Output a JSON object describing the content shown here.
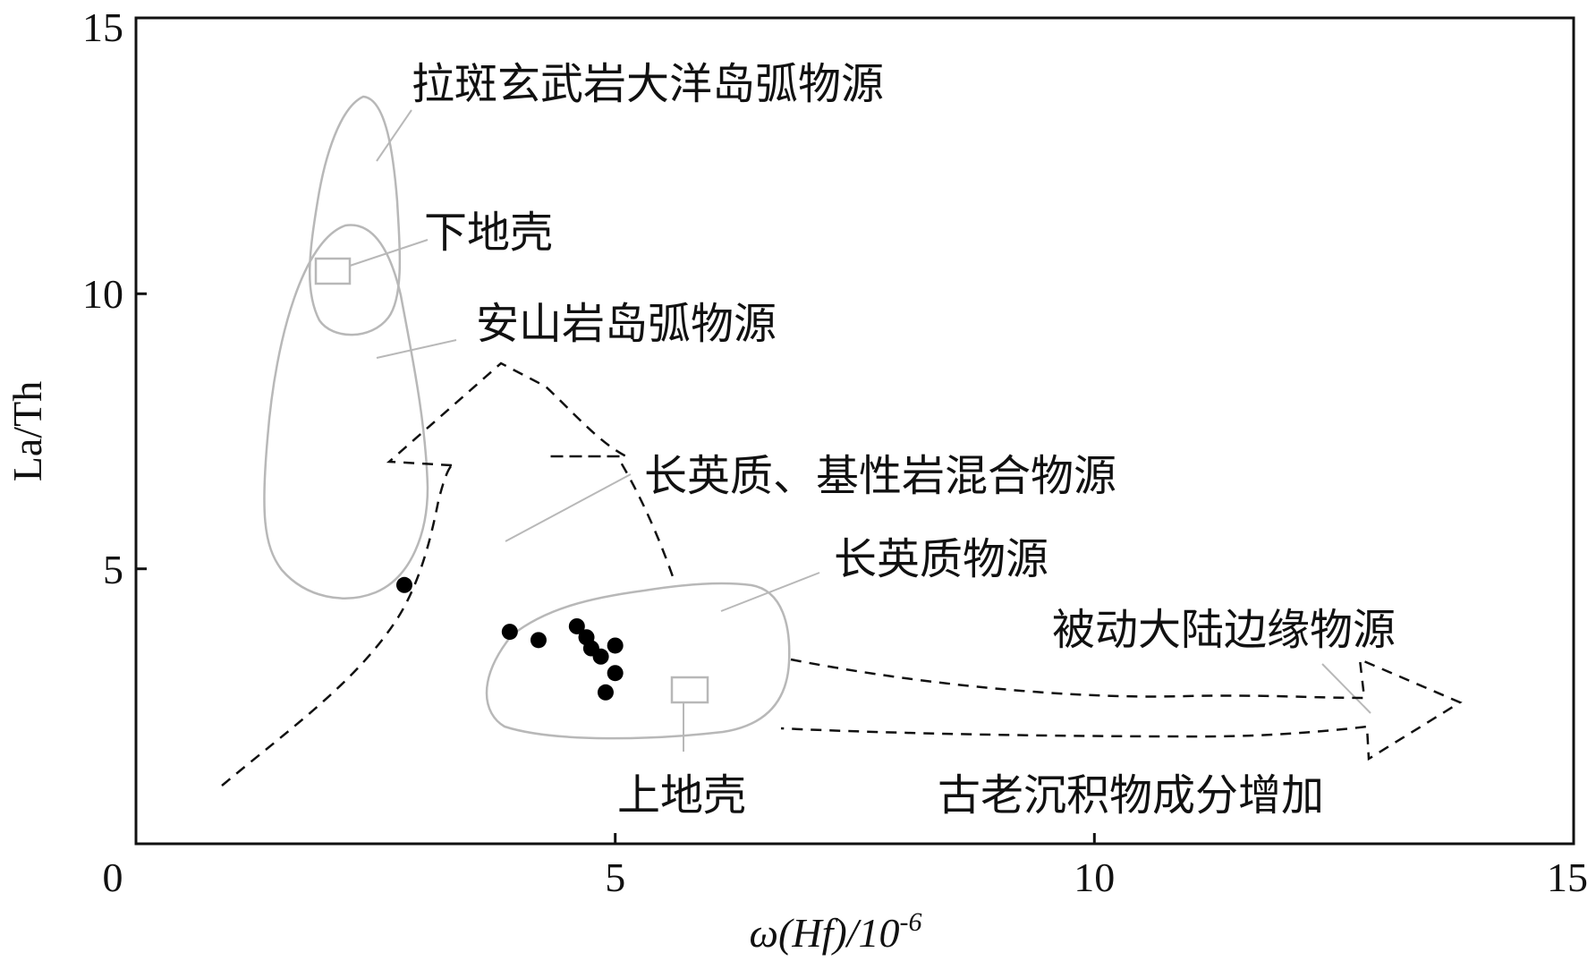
{
  "chart_data": {
    "type": "scatter",
    "title": "",
    "xlabel": "ω(Hf)/10",
    "xlabel_superscript": "-6",
    "ylabel": "La/Th",
    "xlim": [
      0,
      15
    ],
    "ylim": [
      0,
      15
    ],
    "x_ticks": [
      0,
      5,
      10,
      15
    ],
    "y_ticks": [
      5,
      10,
      15
    ],
    "x_tick_labels": [
      "0",
      "5",
      "10",
      "15"
    ],
    "y_tick_labels": [
      "5",
      "10",
      "15"
    ],
    "grid": false,
    "legend": "none",
    "points_color": "#000000",
    "region_color": "#b8b8b8",
    "dashed_color": "#111111",
    "points": [
      {
        "x": 2.8,
        "y": 4.7
      },
      {
        "x": 3.9,
        "y": 3.85
      },
      {
        "x": 4.2,
        "y": 3.7
      },
      {
        "x": 4.6,
        "y": 3.95
      },
      {
        "x": 4.7,
        "y": 3.75
      },
      {
        "x": 4.75,
        "y": 3.55
      },
      {
        "x": 4.85,
        "y": 3.4
      },
      {
        "x": 5.0,
        "y": 3.6
      },
      {
        "x": 5.0,
        "y": 3.1
      },
      {
        "x": 4.9,
        "y": 2.75
      }
    ],
    "annotations": [
      "拉斑玄武岩大洋岛弧物源",
      "下地壳",
      "安山岩岛弧物源",
      "长英质、基性岩混合物源",
      "长英质物源",
      "被动大陆边缘物源",
      "上地壳",
      "古老沉积物成分增加"
    ]
  }
}
